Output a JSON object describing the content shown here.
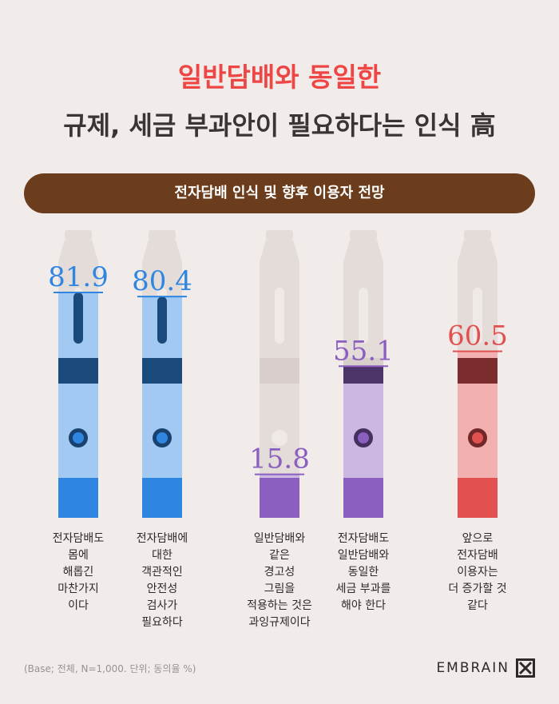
{
  "title": {
    "line1": "일반담배와 동일한",
    "line2": "규제, 세금 부과안이 필요하다는 인식 高"
  },
  "banner": "전자담배 인식 및 향후 이용자 전망",
  "chart_data": {
    "type": "bar",
    "categories": [
      "전자담배도 몸에 해롭긴 마찬가지이다",
      "전자담배에 대한 객관적인 안전성 검사가 필요하다",
      "일반담배와 같은 경고성 그림을 적용하는 것은 과잉규제이다",
      "전자담배도 일반담배와 동일한 세금 부과를 해야 한다",
      "앞으로 전자담배 이용자는 더 증가할 것 같다"
    ],
    "values": [
      81.9,
      80.4,
      15.8,
      55.1,
      60.5
    ],
    "value_labels": [
      "81.9",
      "80.4",
      "15.8",
      "55.1",
      "60.5"
    ],
    "colors": [
      "#2f86e0",
      "#2f86e0",
      "#8b5fbf",
      "#8b5fbf",
      "#e25050"
    ],
    "ylim": [
      0,
      100
    ]
  },
  "labels": [
    [
      "전자담배도",
      "몸에",
      "해롭긴",
      "마찬가지",
      "이다"
    ],
    [
      "전자담배에",
      "대한",
      "객관적인",
      "안전성",
      "검사가",
      "필요하다"
    ],
    [
      "일반담배와",
      "같은",
      "경고성",
      "그림을",
      "적용하는 것은",
      "과잉규제이다"
    ],
    [
      "전자담배도",
      "일반담배와",
      "동일한",
      "세금 부과를",
      "해야 한다"
    ],
    [
      "앞으로",
      "전자담배",
      "이용자는",
      "더 증가할 것",
      "같다"
    ]
  ],
  "footnote": "(Base; 전체, N=1,000. 단위; 동의율 %)",
  "logo": "EMBRAIN"
}
